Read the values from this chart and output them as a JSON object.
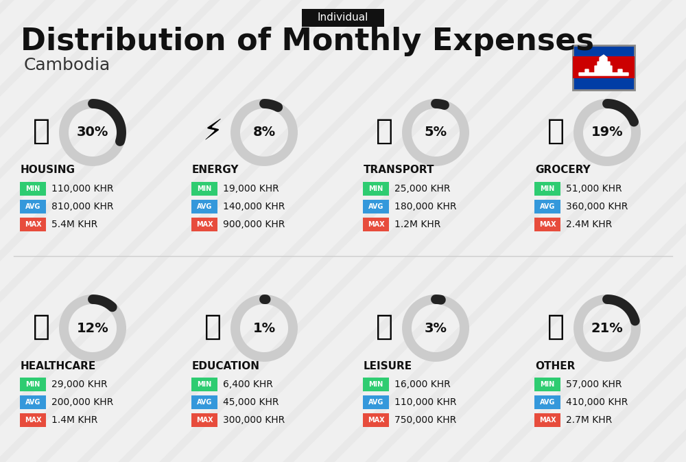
{
  "title": "Distribution of Monthly Expenses",
  "subtitle": "Cambodia",
  "tag": "Individual",
  "bg_color": "#f0f0f0",
  "categories": [
    {
      "name": "HOUSING",
      "pct": 30,
      "min": "110,000 KHR",
      "avg": "810,000 KHR",
      "max": "5.4M KHR",
      "row": 0,
      "col": 0
    },
    {
      "name": "ENERGY",
      "pct": 8,
      "min": "19,000 KHR",
      "avg": "140,000 KHR",
      "max": "900,000 KHR",
      "row": 0,
      "col": 1
    },
    {
      "name": "TRANSPORT",
      "pct": 5,
      "min": "25,000 KHR",
      "avg": "180,000 KHR",
      "max": "1.2M KHR",
      "row": 0,
      "col": 2
    },
    {
      "name": "GROCERY",
      "pct": 19,
      "min": "51,000 KHR",
      "avg": "360,000 KHR",
      "max": "2.4M KHR",
      "row": 0,
      "col": 3
    },
    {
      "name": "HEALTHCARE",
      "pct": 12,
      "min": "29,000 KHR",
      "avg": "200,000 KHR",
      "max": "1.4M KHR",
      "row": 1,
      "col": 0
    },
    {
      "name": "EDUCATION",
      "pct": 1,
      "min": "6,400 KHR",
      "avg": "45,000 KHR",
      "max": "300,000 KHR",
      "row": 1,
      "col": 1
    },
    {
      "name": "LEISURE",
      "pct": 3,
      "min": "16,000 KHR",
      "avg": "110,000 KHR",
      "max": "750,000 KHR",
      "row": 1,
      "col": 2
    },
    {
      "name": "OTHER",
      "pct": 21,
      "min": "57,000 KHR",
      "avg": "410,000 KHR",
      "max": "2.7M KHR",
      "row": 1,
      "col": 3
    }
  ],
  "color_min": "#2ecc71",
  "color_avg": "#3498db",
  "color_max": "#e74c3c",
  "arc_color": "#222222",
  "arc_bg_color": "#cccccc",
  "text_color": "#111111",
  "label_color": "#ffffff"
}
